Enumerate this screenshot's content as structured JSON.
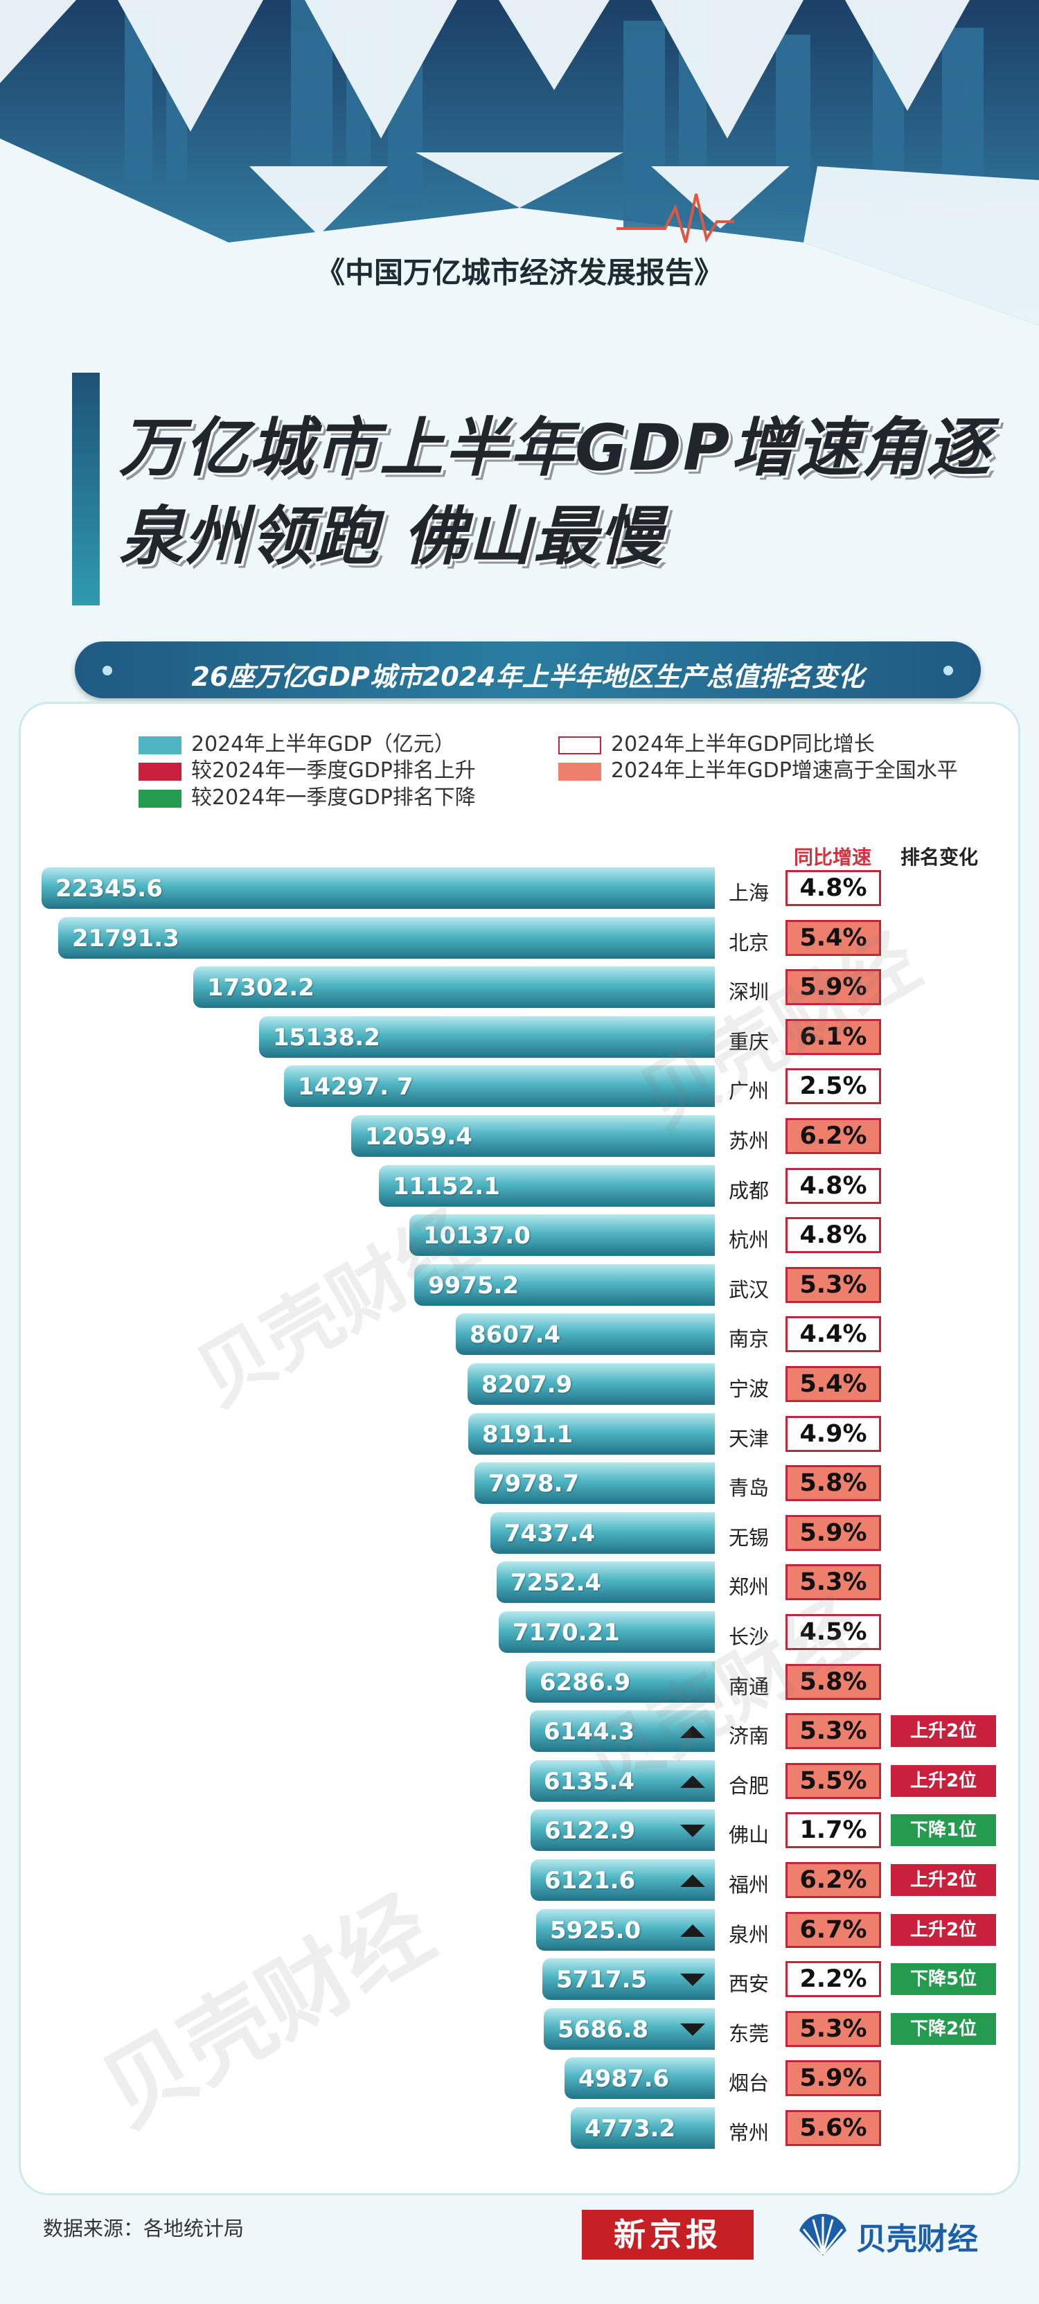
{
  "header": {
    "report_title": "《中国万亿城市经济发展报告》",
    "headline_1": "万亿城市上半年GDP增速角逐",
    "headline_2": "泉州领跑 佛山最慢",
    "subtitle": "26座万亿GDP城市2024年上半年地区生产总值排名变化"
  },
  "legend": {
    "gdp": "2024年上半年GDP（亿元）",
    "rank_up": "较2024年一季度GDP排名上升",
    "rank_down": "较2024年一季度GDP排名下降",
    "growth": "2024年上半年GDP同比增长",
    "growth_above": "2024年上半年GDP增速高于全国水平"
  },
  "columns": {
    "growth": "同比增速",
    "rank_change": "排名变化"
  },
  "colors": {
    "bar": "#4fb5c3",
    "rank_up": "#c8203d",
    "rank_down": "#259b4f",
    "growth_above": "#ee7f6c",
    "growth_border": "#c0263b"
  },
  "chart_data": {
    "type": "bar",
    "orientation": "horizontal",
    "unit": "亿元",
    "categories": [
      "上海",
      "北京",
      "深圳",
      "重庆",
      "广州",
      "苏州",
      "成都",
      "杭州",
      "武汉",
      "南京",
      "宁波",
      "天津",
      "青岛",
      "无锡",
      "郑州",
      "长沙",
      "南通",
      "济南",
      "合肥",
      "佛山",
      "福州",
      "泉州",
      "西安",
      "东莞",
      "烟台",
      "常州"
    ],
    "series": [
      {
        "name": "2024年上半年GDP（亿元）",
        "labels": [
          "22345.6",
          "21791.3",
          "17302.2",
          "15138.2",
          "14297. 7",
          "12059.4",
          "11152.1",
          "10137.0",
          "9975.2",
          "8607.4",
          "8207.9",
          "8191.1",
          "7978.7",
          "7437.4",
          "7252.4",
          "7170.21",
          "6286.9",
          "6144.3",
          "6135.4",
          "6122.9",
          "6121.6",
          "5925.0",
          "5717.5",
          "5686.8",
          "4987.6",
          "4773.2"
        ],
        "values": [
          22345.6,
          21791.3,
          17302.2,
          15138.2,
          14297.7,
          12059.4,
          11152.1,
          10137.0,
          9975.2,
          8607.4,
          8207.9,
          8191.1,
          7978.7,
          7437.4,
          7252.4,
          7170.21,
          6286.9,
          6144.3,
          6135.4,
          6122.9,
          6121.6,
          5925.0,
          5717.5,
          5686.8,
          4987.6,
          4773.2
        ]
      },
      {
        "name": "2024年上半年GDP同比增长",
        "labels": [
          "4.8%",
          "5.4%",
          "5.9%",
          "6.1%",
          "2.5%",
          "6.2%",
          "4.8%",
          "4.8%",
          "5.3%",
          "4.4%",
          "5.4%",
          "4.9%",
          "5.8%",
          "5.9%",
          "5.3%",
          "4.5%",
          "5.8%",
          "5.3%",
          "5.5%",
          "1.7%",
          "6.2%",
          "6.7%",
          "2.2%",
          "5.3%",
          "5.9%",
          "5.6%"
        ],
        "values": [
          4.8,
          5.4,
          5.9,
          6.1,
          2.5,
          6.2,
          4.8,
          4.8,
          5.3,
          4.4,
          5.4,
          4.9,
          5.8,
          5.9,
          5.3,
          4.5,
          5.8,
          5.3,
          5.5,
          1.7,
          6.2,
          6.7,
          2.2,
          5.3,
          5.9,
          5.6
        ]
      }
    ],
    "above_national": [
      false,
      true,
      true,
      true,
      false,
      true,
      false,
      false,
      true,
      false,
      true,
      false,
      true,
      true,
      true,
      false,
      true,
      true,
      true,
      false,
      true,
      true,
      false,
      true,
      true,
      true
    ],
    "rank_change": [
      "",
      "",
      "",
      "",
      "",
      "",
      "",
      "",
      "",
      "",
      "",
      "",
      "",
      "",
      "",
      "",
      "",
      "上升2位",
      "上升2位",
      "下降1位",
      "上升2位",
      "上升2位",
      "下降5位",
      "下降2位",
      "",
      ""
    ],
    "rank_direction": [
      "",
      "",
      "",
      "",
      "",
      "",
      "",
      "",
      "",
      "",
      "",
      "",
      "",
      "",
      "",
      "",
      "",
      "up",
      "up",
      "down",
      "up",
      "up",
      "down",
      "down",
      "",
      ""
    ]
  },
  "watermark": "贝壳财经",
  "footer": {
    "source": "数据来源：各地统计局",
    "logo_xjb": "新京报",
    "logo_bk": "贝壳财经"
  }
}
